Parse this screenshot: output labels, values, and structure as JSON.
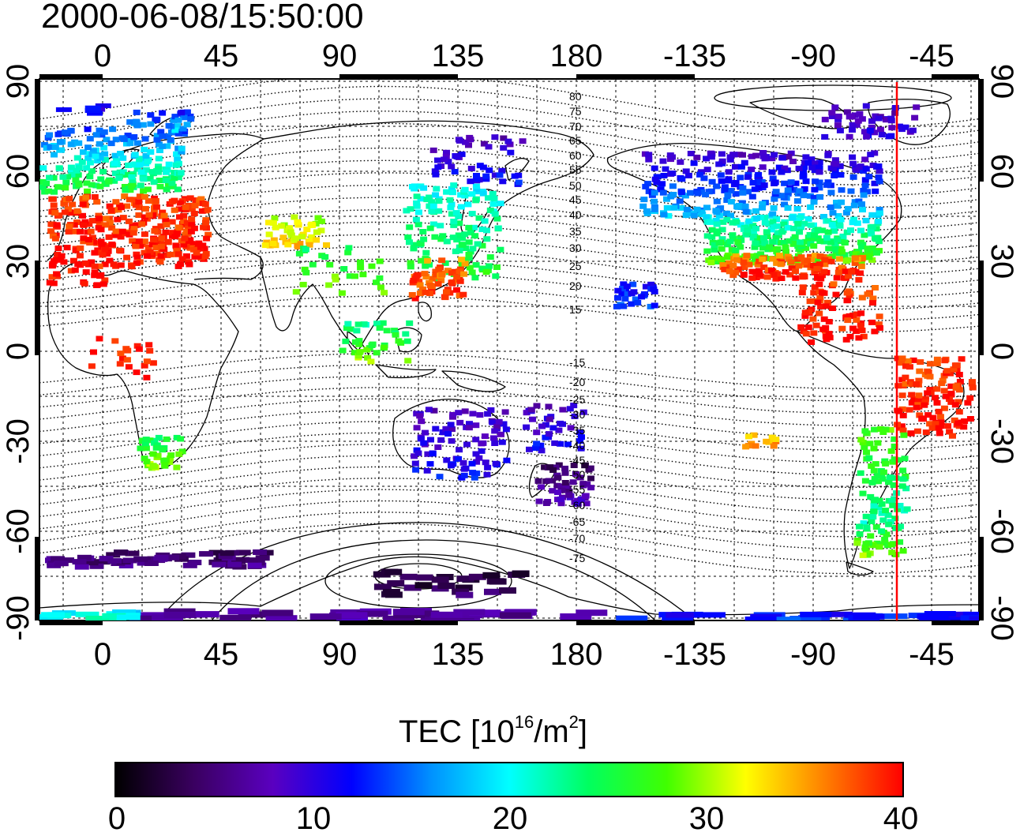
{
  "timestamp": "2000-06-08/15:50:00",
  "map": {
    "lon_ticks": [
      "0",
      "45",
      "90",
      "135",
      "180",
      "-135",
      "-90",
      "-45"
    ],
    "lat_ticks_left": [
      "90",
      "60",
      "30",
      "0",
      "-30",
      "-60",
      "-90"
    ],
    "lat_ticks_right": [
      "90",
      "60",
      "30",
      "0",
      "-30",
      "-60",
      "-90"
    ],
    "magnetic_latitude_labels": [
      "80",
      "75",
      "70",
      "65",
      "60",
      "55",
      "50",
      "45",
      "40",
      "35",
      "30",
      "25",
      "20",
      "15",
      "-15",
      "-20",
      "-25",
      "-30",
      "-35",
      "-40",
      "-45",
      "-50",
      "-55",
      "-60",
      "-65",
      "-70",
      "-75"
    ],
    "grid": true,
    "marker_line_color": "#ff0000"
  },
  "colorbar": {
    "title_prefix": "TEC  [10",
    "title_exp1": "16",
    "title_mid": "/m",
    "title_exp2": "2",
    "title_suffix": "]",
    "ticks": [
      "0",
      "10",
      "20",
      "30",
      "40"
    ],
    "range": [
      0,
      40
    ],
    "stops": [
      "#000000",
      "#3a0060",
      "#5a00c0",
      "#0000ff",
      "#0090ff",
      "#00ffff",
      "#00ff60",
      "#40ff00",
      "#ffff00",
      "#ff8000",
      "#ff0000"
    ]
  }
}
